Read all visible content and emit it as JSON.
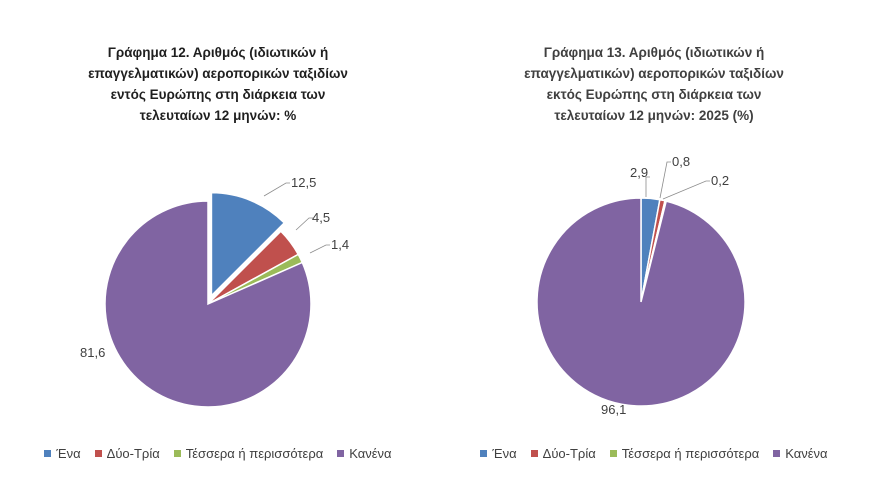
{
  "chart_data": [
    {
      "type": "pie",
      "title_lines": [
        "Γράφημα 12. Αριθμός (ιδιωτικών ή",
        "επαγγελματικών) αεροπορικών ταξιδίων",
        "εντός Ευρώπης στη διάρκεια των",
        "τελευταίων 12 μηνών: %"
      ],
      "categories": [
        "Ένα",
        "Δύο-Τρία",
        "Τέσσερα ή περισσότερα",
        "Κανένα"
      ],
      "values": [
        12.5,
        4.5,
        1.4,
        81.6
      ],
      "value_labels": [
        "12,5",
        "4,5",
        "1,4",
        "81,6"
      ],
      "colors": [
        "#4f81bd",
        "#c0504d",
        "#9bbb59",
        "#8064a2"
      ],
      "exploded": [
        true,
        false,
        false,
        false
      ],
      "legend_position": "bottom"
    },
    {
      "type": "pie",
      "title_lines": [
        "Γράφημα 13. Αριθμός (ιδιωτικών ή",
        "επαγγελματικών) αεροπορικών ταξιδίων",
        "εκτός Ευρώπης στη διάρκεια των",
        "τελευταίων 12 μηνών: 2025 (%)"
      ],
      "categories": [
        "Ένα",
        "Δύο-Τρία",
        "Τέσσερα ή περισσότερα",
        "Κανένα"
      ],
      "values": [
        2.9,
        0.8,
        0.2,
        96.1
      ],
      "value_labels": [
        "2,9",
        "0,8",
        "0,2",
        "96,1"
      ],
      "colors": [
        "#4f81bd",
        "#c0504d",
        "#9bbb59",
        "#8064a2"
      ],
      "exploded": [
        false,
        false,
        false,
        false
      ],
      "legend_position": "bottom"
    }
  ]
}
